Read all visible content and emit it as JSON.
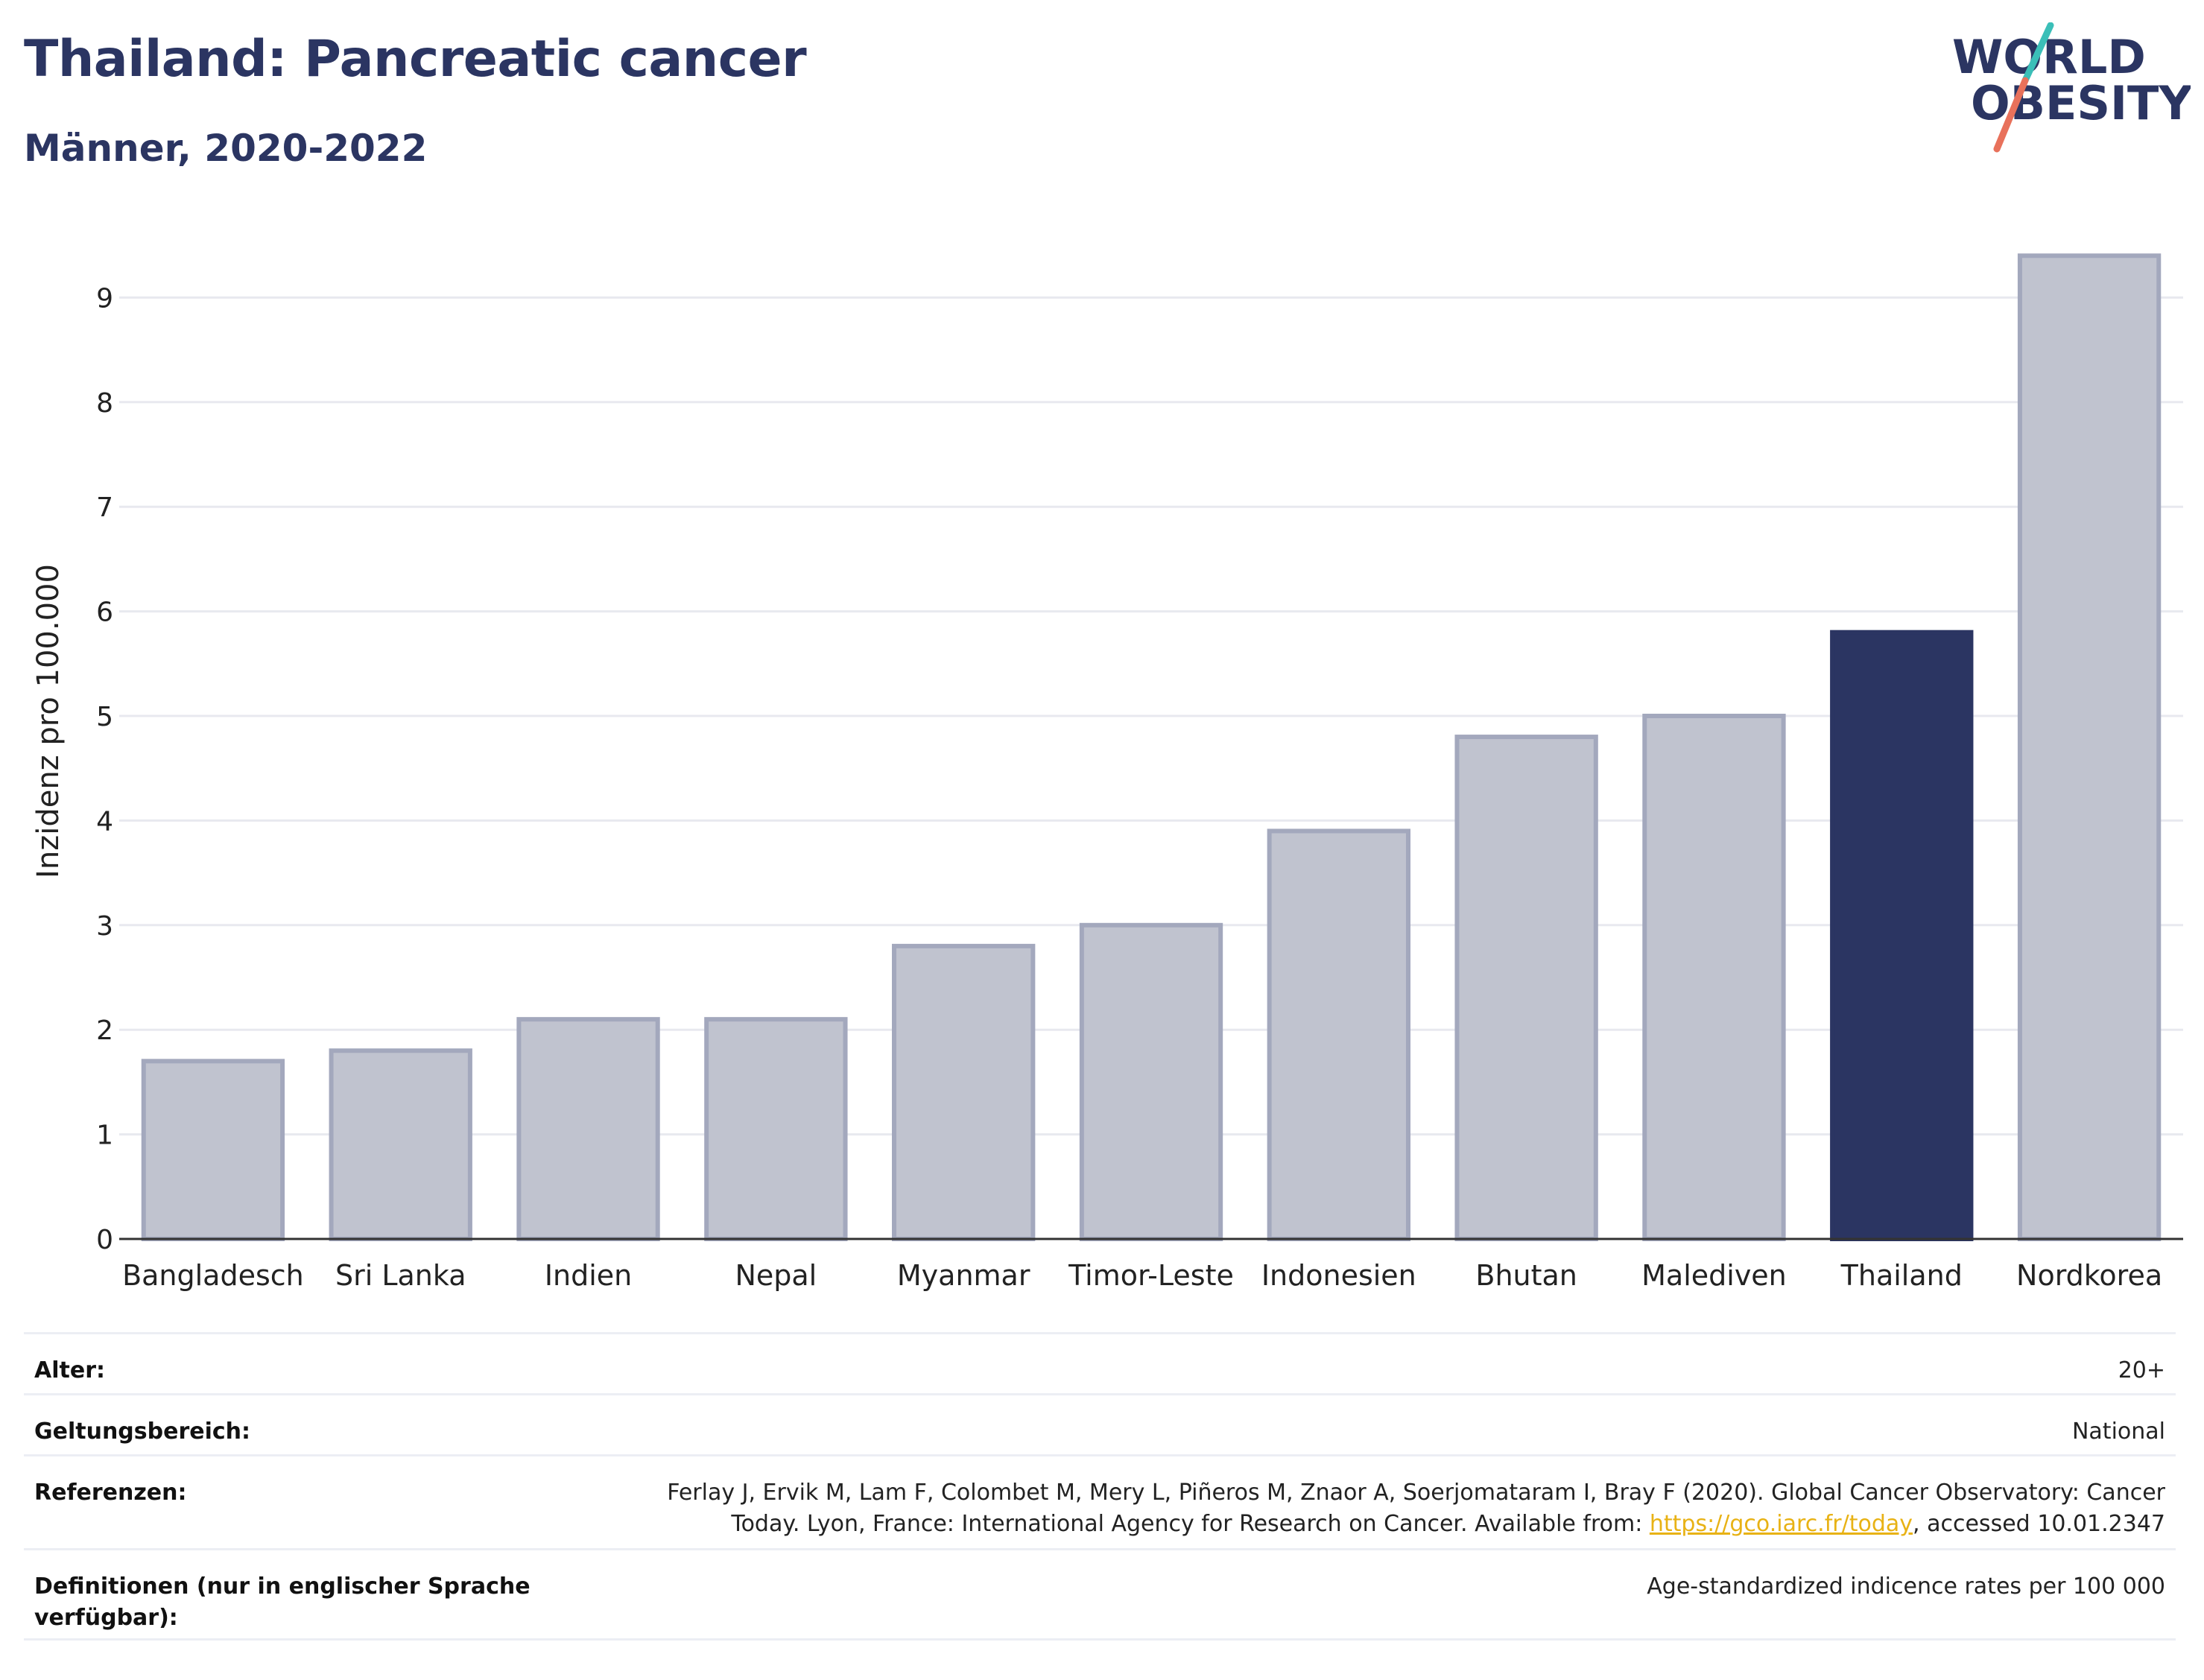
{
  "header": {
    "title": "Thailand: Pancreatic cancer",
    "subtitle": "Männer, 2020-2022"
  },
  "logo": {
    "line1": "WORLD",
    "line2": "OBESITY",
    "colors": {
      "text": "#2b3562",
      "slash_top": "#3bbfb8",
      "slash_bottom": "#e8715b"
    }
  },
  "colors": {
    "bar": "#c0c3cf",
    "bar_border": "#a3a8bd",
    "highlight": "#2b3562",
    "grid": "#e8e9ef",
    "axis": "#333333"
  },
  "chart_data": {
    "type": "bar",
    "title": "Thailand: Pancreatic cancer",
    "subtitle": "Männer, 2020-2022",
    "ylabel": "Inzidenz pro 100.000",
    "xlabel": "",
    "ylim": [
      0,
      9.6
    ],
    "yticks": [
      0,
      1,
      2,
      3,
      4,
      5,
      6,
      7,
      8,
      9
    ],
    "grid": true,
    "categories": [
      "Bangladesch",
      "Sri Lanka",
      "Indien",
      "Nepal",
      "Myanmar",
      "Timor-Leste",
      "Indonesien",
      "Bhutan",
      "Malediven",
      "Thailand",
      "Nordkorea"
    ],
    "values": [
      1.7,
      1.8,
      2.1,
      2.1,
      2.8,
      3.0,
      3.9,
      4.8,
      5.0,
      5.8,
      9.4
    ],
    "highlight": "Thailand"
  },
  "info": {
    "rows": [
      {
        "label": "Alter:",
        "value": "20+"
      },
      {
        "label": "Geltungsbereich:",
        "value": "National"
      },
      {
        "label": "Referenzen:",
        "value_line1": "Ferlay J, Ervik M, Lam F, Colombet M, Mery L, Piñeros M, Znaor A, Soerjomataram I, Bray F (2020). Global Cancer Observatory: Cancer",
        "value_line2_pre": "Today. Lyon, France: International Agency for Research on Cancer. Available from: ",
        "link": "https://gco.iarc.fr/today",
        "value_line2_post": ", accessed 10.01.2347"
      },
      {
        "label": "Definitionen (nur in englischer Sprache verfügbar):",
        "value": "Age-standardized indicence rates per 100 000"
      }
    ]
  }
}
